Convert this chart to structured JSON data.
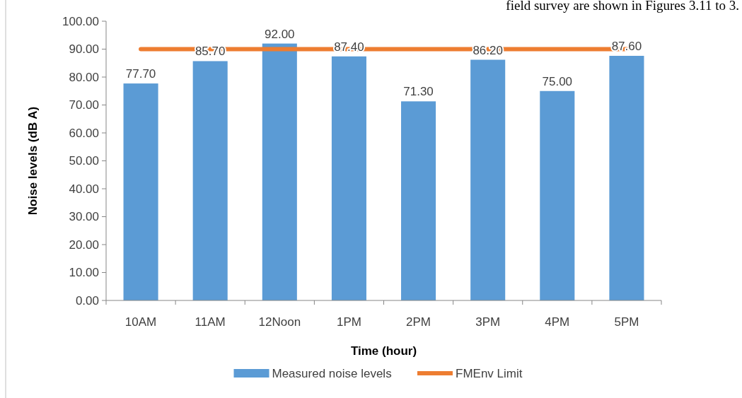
{
  "chart_data": {
    "type": "bar",
    "xlabel": "Time (hour)",
    "ylabel": "Noise levels (dB A)",
    "annotations": [
      "field survey are shown in Figures 3.11 to 3."
    ],
    "categories": [
      "10AM",
      "11AM",
      "12Noon",
      "1PM",
      "2PM",
      "3PM",
      "4PM",
      "5PM"
    ],
    "series": [
      {
        "name": "Measured noise levels",
        "color": "#5b9bd5",
        "values": [
          77.7,
          85.7,
          92.0,
          87.4,
          71.3,
          86.2,
          75.0,
          87.6
        ],
        "value_labels": [
          "77.70",
          "85.70",
          "92.00",
          "87.40",
          "71.30",
          "86.20",
          "75.00",
          "87.60"
        ]
      },
      {
        "name": "FMEnv Limit",
        "type": "line",
        "color": "#ed7d31",
        "values": [
          90,
          90,
          90,
          90,
          90,
          90,
          90,
          90
        ]
      }
    ],
    "ylim": [
      0,
      100
    ],
    "yticks": [
      {
        "value": 0,
        "label": "0.00"
      },
      {
        "value": 10,
        "label": "10.00"
      },
      {
        "value": 20,
        "label": "20.00"
      },
      {
        "value": 30,
        "label": "30.00"
      },
      {
        "value": 40,
        "label": "40.00"
      },
      {
        "value": 50,
        "label": "50.00"
      },
      {
        "value": 60,
        "label": "60.00"
      },
      {
        "value": 70,
        "label": "70.00"
      },
      {
        "value": 80,
        "label": "80.00"
      },
      {
        "value": 90,
        "label": "90.00"
      },
      {
        "value": 100,
        "label": "100.00"
      }
    ],
    "legend": "bottom"
  }
}
